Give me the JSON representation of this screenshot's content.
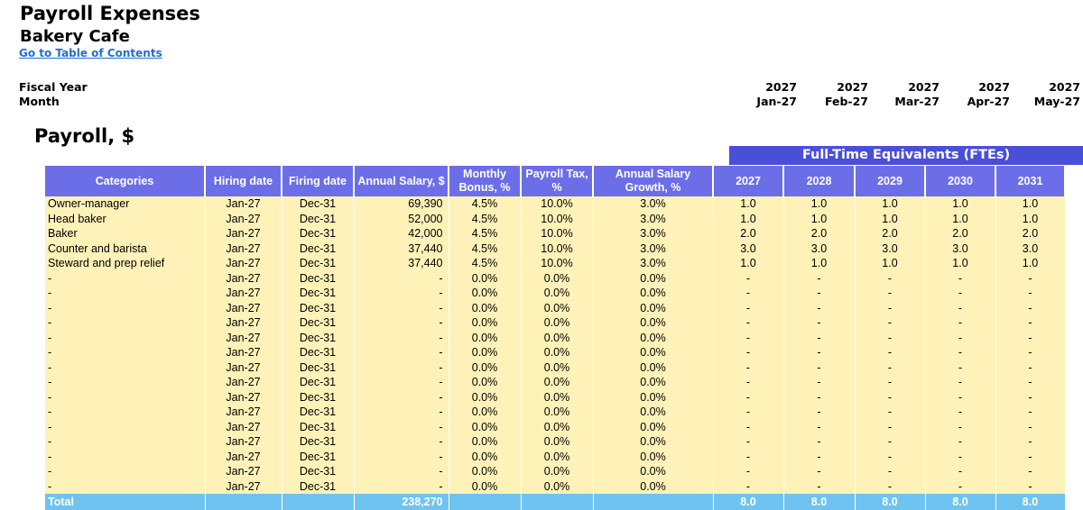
{
  "header": {
    "title": "Payroll Expenses",
    "subtitle": "Bakery Cafe",
    "toc_link": "Go to Table of Contents",
    "fiscal_year_label": "Fiscal Year",
    "month_label": "Month",
    "periods": [
      {
        "year": "2027",
        "month": "Jan-27"
      },
      {
        "year": "2027",
        "month": "Feb-27"
      },
      {
        "year": "2027",
        "month": "Mar-27"
      },
      {
        "year": "2027",
        "month": "Apr-27"
      },
      {
        "year": "2027",
        "month": "May-27"
      }
    ]
  },
  "section_title": "Payroll, $",
  "fte_banner": "Full-Time Equivalents (FTEs)",
  "columns": {
    "categories": "Categories",
    "hiring": "Hiring date",
    "firing": "Firing date",
    "salary": "Annual Salary, $",
    "bonus": "Monthly Bonus, %",
    "tax": "Payroll Tax, %",
    "growth": "Annual Salary Growth, %",
    "years": [
      "2027",
      "2028",
      "2029",
      "2030",
      "2031"
    ]
  },
  "rows": [
    {
      "cat": "Owner-manager",
      "hire": "Jan-27",
      "fire": "Dec-31",
      "salary": "69,390",
      "bonus": "4.5%",
      "tax": "10.0%",
      "growth": "3.0%",
      "fte": [
        "1.0",
        "1.0",
        "1.0",
        "1.0",
        "1.0"
      ]
    },
    {
      "cat": "Head baker",
      "hire": "Jan-27",
      "fire": "Dec-31",
      "salary": "52,000",
      "bonus": "4.5%",
      "tax": "10.0%",
      "growth": "3.0%",
      "fte": [
        "1.0",
        "1.0",
        "1.0",
        "1.0",
        "1.0"
      ]
    },
    {
      "cat": "Baker",
      "hire": "Jan-27",
      "fire": "Dec-31",
      "salary": "42,000",
      "bonus": "4.5%",
      "tax": "10.0%",
      "growth": "3.0%",
      "fte": [
        "2.0",
        "2.0",
        "2.0",
        "2.0",
        "2.0"
      ]
    },
    {
      "cat": "Counter and barista",
      "hire": "Jan-27",
      "fire": "Dec-31",
      "salary": "37,440",
      "bonus": "4.5%",
      "tax": "10.0%",
      "growth": "3.0%",
      "fte": [
        "3.0",
        "3.0",
        "3.0",
        "3.0",
        "3.0"
      ]
    },
    {
      "cat": "Steward and prep relief",
      "hire": "Jan-27",
      "fire": "Dec-31",
      "salary": "37,440",
      "bonus": "4.5%",
      "tax": "10.0%",
      "growth": "3.0%",
      "fte": [
        "1.0",
        "1.0",
        "1.0",
        "1.0",
        "1.0"
      ]
    },
    {
      "cat": "-",
      "hire": "Jan-27",
      "fire": "Dec-31",
      "salary": "-",
      "bonus": "0.0%",
      "tax": "0.0%",
      "growth": "0.0%",
      "fte": [
        "-",
        "-",
        "-",
        "-",
        "-"
      ]
    },
    {
      "cat": "-",
      "hire": "Jan-27",
      "fire": "Dec-31",
      "salary": "-",
      "bonus": "0.0%",
      "tax": "0.0%",
      "growth": "0.0%",
      "fte": [
        "-",
        "-",
        "-",
        "-",
        "-"
      ]
    },
    {
      "cat": "-",
      "hire": "Jan-27",
      "fire": "Dec-31",
      "salary": "-",
      "bonus": "0.0%",
      "tax": "0.0%",
      "growth": "0.0%",
      "fte": [
        "-",
        "-",
        "-",
        "-",
        "-"
      ]
    },
    {
      "cat": "-",
      "hire": "Jan-27",
      "fire": "Dec-31",
      "salary": "-",
      "bonus": "0.0%",
      "tax": "0.0%",
      "growth": "0.0%",
      "fte": [
        "-",
        "-",
        "-",
        "-",
        "-"
      ]
    },
    {
      "cat": "-",
      "hire": "Jan-27",
      "fire": "Dec-31",
      "salary": "-",
      "bonus": "0.0%",
      "tax": "0.0%",
      "growth": "0.0%",
      "fte": [
        "-",
        "-",
        "-",
        "-",
        "-"
      ]
    },
    {
      "cat": "-",
      "hire": "Jan-27",
      "fire": "Dec-31",
      "salary": "-",
      "bonus": "0.0%",
      "tax": "0.0%",
      "growth": "0.0%",
      "fte": [
        "-",
        "-",
        "-",
        "-",
        "-"
      ]
    },
    {
      "cat": "-",
      "hire": "Jan-27",
      "fire": "Dec-31",
      "salary": "-",
      "bonus": "0.0%",
      "tax": "0.0%",
      "growth": "0.0%",
      "fte": [
        "-",
        "-",
        "-",
        "-",
        "-"
      ]
    },
    {
      "cat": "-",
      "hire": "Jan-27",
      "fire": "Dec-31",
      "salary": "-",
      "bonus": "0.0%",
      "tax": "0.0%",
      "growth": "0.0%",
      "fte": [
        "-",
        "-",
        "-",
        "-",
        "-"
      ]
    },
    {
      "cat": "-",
      "hire": "Jan-27",
      "fire": "Dec-31",
      "salary": "-",
      "bonus": "0.0%",
      "tax": "0.0%",
      "growth": "0.0%",
      "fte": [
        "-",
        "-",
        "-",
        "-",
        "-"
      ]
    },
    {
      "cat": "-",
      "hire": "Jan-27",
      "fire": "Dec-31",
      "salary": "-",
      "bonus": "0.0%",
      "tax": "0.0%",
      "growth": "0.0%",
      "fte": [
        "-",
        "-",
        "-",
        "-",
        "-"
      ]
    },
    {
      "cat": "-",
      "hire": "Jan-27",
      "fire": "Dec-31",
      "salary": "-",
      "bonus": "0.0%",
      "tax": "0.0%",
      "growth": "0.0%",
      "fte": [
        "-",
        "-",
        "-",
        "-",
        "-"
      ]
    },
    {
      "cat": "-",
      "hire": "Jan-27",
      "fire": "Dec-31",
      "salary": "-",
      "bonus": "0.0%",
      "tax": "0.0%",
      "growth": "0.0%",
      "fte": [
        "-",
        "-",
        "-",
        "-",
        "-"
      ]
    },
    {
      "cat": "-",
      "hire": "Jan-27",
      "fire": "Dec-31",
      "salary": "-",
      "bonus": "0.0%",
      "tax": "0.0%",
      "growth": "0.0%",
      "fte": [
        "-",
        "-",
        "-",
        "-",
        "-"
      ]
    },
    {
      "cat": "-",
      "hire": "Jan-27",
      "fire": "Dec-31",
      "salary": "-",
      "bonus": "0.0%",
      "tax": "0.0%",
      "growth": "0.0%",
      "fte": [
        "-",
        "-",
        "-",
        "-",
        "-"
      ]
    },
    {
      "cat": "-",
      "hire": "Jan-27",
      "fire": "Dec-31",
      "salary": "-",
      "bonus": "0.0%",
      "tax": "0.0%",
      "growth": "0.0%",
      "fte": [
        "-",
        "-",
        "-",
        "-",
        "-"
      ]
    }
  ],
  "total": {
    "label": "Total",
    "salary": "238,270",
    "fte": [
      "8.0",
      "8.0",
      "8.0",
      "8.0",
      "8.0"
    ]
  },
  "colors": {
    "header_fill": "#6c6ee8",
    "banner_fill": "#4a4fd8",
    "input_cell": "#fff2b8",
    "total_row": "#6fc3f0",
    "link": "#1f6fd6"
  }
}
